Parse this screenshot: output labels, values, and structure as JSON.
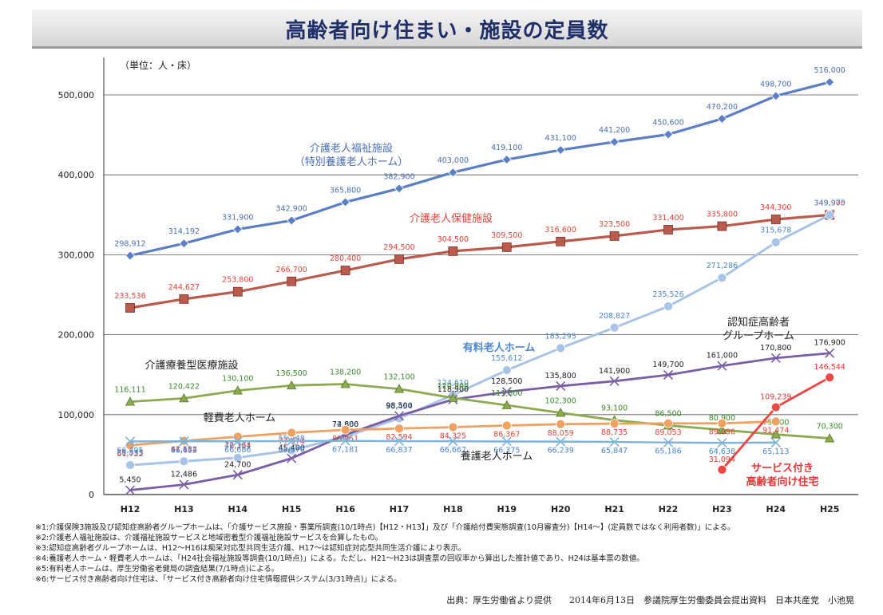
{
  "title": "高齢者向け住まい・施設の定員数",
  "chart_data": {
    "type": "line",
    "unit_label": "（単位：人・床）",
    "categories": [
      "H12",
      "H13",
      "H14",
      "H15",
      "H16",
      "H17",
      "H18",
      "H19",
      "H20",
      "H21",
      "H22",
      "H23",
      "H24",
      "H25"
    ],
    "yticks": [
      "0",
      "100,000",
      "200,000",
      "300,000",
      "400,000",
      "500,000"
    ],
    "ylim": [
      0,
      530000
    ],
    "grid": true,
    "series": [
      {
        "name": "介護老人福祉施設\n（特別養護老人ホーム）",
        "color": "#5a7fc4",
        "marker": "diamond",
        "label_color": "#4a6fb0",
        "values": [
          298912,
          314192,
          331900,
          342900,
          365800,
          382900,
          403000,
          419100,
          431100,
          441200,
          450600,
          470200,
          498700,
          516000
        ],
        "labels": [
          "298,912",
          "314,192",
          "331,900",
          "342,900",
          "365,800",
          "382,900",
          "403,000",
          "419,100",
          "431,100",
          "441,200",
          "450,600",
          "470,200",
          "498,700",
          "516,000"
        ]
      },
      {
        "name": "介護老人保健施設",
        "color": "#b95b4d",
        "marker": "square",
        "label_color": "#e0453a",
        "values": [
          233536,
          244627,
          253800,
          266700,
          280400,
          294500,
          304500,
          309500,
          316600,
          323500,
          331400,
          335800,
          344300,
          349900
        ],
        "labels": [
          "233,536",
          "244,627",
          "253,800",
          "266,700",
          "280,400",
          "294,500",
          "304,500",
          "309,500",
          "316,600",
          "323,500",
          "331,400",
          "335,800",
          "344,300",
          "349,900"
        ]
      },
      {
        "name": "有料老人ホーム",
        "color": "#a9c3e6",
        "marker": "circle",
        "label_color": "#4a86d0",
        "values": [
          36855,
          41582,
          46121,
          55448,
          72666,
          95454,
          124610,
          155612,
          183295,
          208827,
          235526,
          271286,
          315678,
          349975
        ],
        "labels": [
          "36,855",
          "41,582",
          "46,121",
          "55,448",
          "72,666",
          "95,454",
          "124,610",
          "155,612",
          "183,295",
          "208,827",
          "235,526",
          "271,286",
          "315,678",
          "349,975"
        ]
      },
      {
        "name": "認知症高齢者\nグループホーム",
        "color": "#7a5ea6",
        "marker": "x",
        "label_color": "#222",
        "values": [
          5450,
          12486,
          24700,
          45400,
          74800,
          98500,
          118900,
          128500,
          135800,
          141900,
          149700,
          161000,
          170800,
          176900
        ],
        "labels": [
          "5,450",
          "12,486",
          "24,700",
          "45,400",
          "74,800",
          "98,500",
          "118,900",
          "128,500",
          "135,800",
          "141,900",
          "149,700",
          "161,000",
          "170,800",
          "176,900"
        ]
      },
      {
        "name": "介護療養型医療施設",
        "color": "#8aab4e",
        "marker": "triangle",
        "label_color": "#3a8a2a",
        "values": [
          116111,
          120422,
          130100,
          136500,
          138200,
          132100,
          120900,
          111800,
          102300,
          93100,
          86500,
          80900,
          75200,
          70300
        ],
        "labels": [
          "116,111",
          "120,422",
          "130,100",
          "136,500",
          "138,200",
          "132,100",
          "120,900",
          "111,800",
          "102,300",
          "93,100",
          "86,500",
          "80,900",
          "75,200",
          "70,300"
        ]
      },
      {
        "name": "軽費老人ホーム",
        "color": "#f0a060",
        "marker": "circle",
        "label_color": "#e0453a",
        "values": [
          61732,
          67154,
          72364,
          77374,
          80951,
          82594,
          84325,
          86367,
          88059,
          88735,
          89053,
          89096,
          91474,
          null
        ],
        "labels": [
          "61,732",
          "67,154",
          "72,364",
          "77,374",
          "80,951",
          "82,594",
          "84,325",
          "86,367",
          "88,059",
          "88,735",
          "89,053",
          "89,096",
          "91,474",
          ""
        ]
      },
      {
        "name": "養護老人ホーム",
        "color": "#7eb3d9",
        "marker": "x",
        "label_color": "#4a86d0",
        "values": [
          66495,
          66612,
          66686,
          66970,
          67181,
          66837,
          66667,
          66375,
          66239,
          65847,
          65186,
          64638,
          65113,
          null
        ],
        "labels": [
          "66,495",
          "66,612",
          "66,686",
          "66,970",
          "67,181",
          "66,837",
          "66,667",
          "66,375",
          "66,239",
          "65,847",
          "65,186",
          "64,638",
          "65,113",
          ""
        ]
      },
      {
        "name": "サービス付き\n高齢者向け住宅",
        "color": "#ee4545",
        "marker": "circle",
        "label_color": "#e53535",
        "values": [
          null,
          null,
          null,
          null,
          null,
          null,
          null,
          null,
          null,
          null,
          null,
          31094,
          109239,
          146544
        ],
        "labels": [
          "",
          "",
          "",
          "",
          "",
          "",
          "",
          "",
          "",
          "",
          "",
          "31,094",
          "109,239",
          "146,544"
        ]
      }
    ]
  },
  "notes": [
    "※1:介護保険3施設及び認知症高齢者グループホームは、「介護サービス施設・事業所調査(10/1時点)【H12・H13】」及び「介護給付費実態調査(10月審査分)【H14～】(定員数ではなく利用者数)」による。",
    "※2:介護老人福祉施設は、介護福祉施設サービスと地域密着型介護福祉施設サービスを合算したもの。",
    "※3:認知症高齢者グループホームは、H12～H16は痴呆対応型共同生活介護、H17～は認知症対応型共同生活介護により表示。",
    "※4:養護老人ホーム・軽費老人ホームは、「H24社会福祉施設等調査(10/1時点)」による。ただし、H21～H23は調査票の回収率から算出した推計値であり、H24は基本票の数値。",
    "※5:有料老人ホームは、厚生労働省老健局の調査結果(7/1時点)による。",
    "※6:サービス付き高齢者向け住宅は、「サービス付き高齢者向け住宅情報提供システム(3/31時点)」による。"
  ],
  "source": "出典：厚生労働省より提供　　2014年6月13日　参議院厚生労働委員会提出資料　日本共産党　小池晃"
}
